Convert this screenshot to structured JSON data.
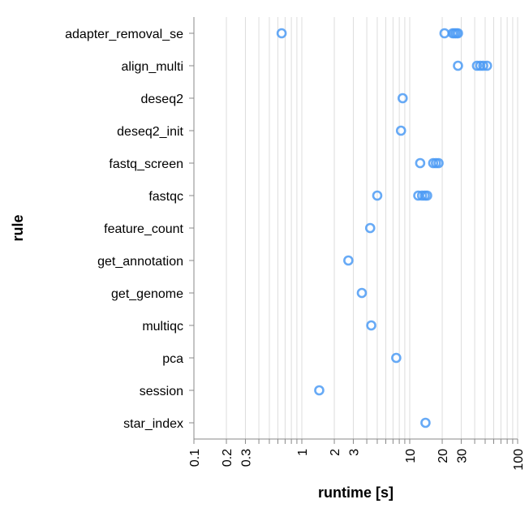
{
  "chart_data": {
    "type": "scatter",
    "xlabel": "runtime [s]",
    "ylabel": "rule",
    "xscale": "log",
    "xlim": [
      0.1,
      100
    ],
    "grid": true,
    "point_color": "#4c9bf5",
    "x_ticks": [
      0.1,
      0.2,
      0.3,
      0.4,
      0.5,
      0.6,
      0.7,
      0.8,
      0.9,
      1,
      2,
      3,
      4,
      5,
      6,
      7,
      8,
      9,
      10,
      20,
      30,
      40,
      50,
      60,
      70,
      80,
      90,
      100
    ],
    "x_tick_labels": [
      {
        "value": 0.1,
        "label": "0.1"
      },
      {
        "value": 0.2,
        "label": "0.2"
      },
      {
        "value": 0.3,
        "label": "0.3"
      },
      {
        "value": 1,
        "label": "1"
      },
      {
        "value": 2,
        "label": "2"
      },
      {
        "value": 3,
        "label": "3"
      },
      {
        "value": 10,
        "label": "10"
      },
      {
        "value": 20,
        "label": "20"
      },
      {
        "value": 30,
        "label": "30"
      },
      {
        "value": 100,
        "label": "100"
      }
    ],
    "categories": [
      "adapter_removal_se",
      "align_multi",
      "deseq2",
      "deseq2_init",
      "fastq_screen",
      "fastqc",
      "feature_count",
      "get_annotation",
      "get_genome",
      "multiqc",
      "pca",
      "session",
      "star_index"
    ],
    "points": [
      {
        "rule": "adapter_removal_se",
        "runtime": 0.65
      },
      {
        "rule": "adapter_removal_se",
        "runtime": 21
      },
      {
        "rule": "adapter_removal_se",
        "runtime": 25
      },
      {
        "rule": "adapter_removal_se",
        "runtime": 26
      },
      {
        "rule": "adapter_removal_se",
        "runtime": 27
      },
      {
        "rule": "adapter_removal_se",
        "runtime": 28
      },
      {
        "rule": "align_multi",
        "runtime": 28
      },
      {
        "rule": "align_multi",
        "runtime": 42
      },
      {
        "rule": "align_multi",
        "runtime": 45
      },
      {
        "rule": "align_multi",
        "runtime": 48
      },
      {
        "rule": "align_multi",
        "runtime": 52
      },
      {
        "rule": "deseq2",
        "runtime": 8.6
      },
      {
        "rule": "deseq2_init",
        "runtime": 8.3
      },
      {
        "rule": "fastq_screen",
        "runtime": 12.5
      },
      {
        "rule": "fastq_screen",
        "runtime": 16.5
      },
      {
        "rule": "fastq_screen",
        "runtime": 17.5
      },
      {
        "rule": "fastq_screen",
        "runtime": 18.5
      },
      {
        "rule": "fastqc",
        "runtime": 5.0
      },
      {
        "rule": "fastqc",
        "runtime": 12.0
      },
      {
        "rule": "fastqc",
        "runtime": 13.0
      },
      {
        "rule": "fastqc",
        "runtime": 13.8
      },
      {
        "rule": "fastqc",
        "runtime": 14.5
      },
      {
        "rule": "feature_count",
        "runtime": 4.3
      },
      {
        "rule": "get_annotation",
        "runtime": 2.7
      },
      {
        "rule": "get_genome",
        "runtime": 3.6
      },
      {
        "rule": "multiqc",
        "runtime": 4.4
      },
      {
        "rule": "pca",
        "runtime": 7.5
      },
      {
        "rule": "session",
        "runtime": 1.45
      },
      {
        "rule": "star_index",
        "runtime": 14.0
      }
    ]
  }
}
